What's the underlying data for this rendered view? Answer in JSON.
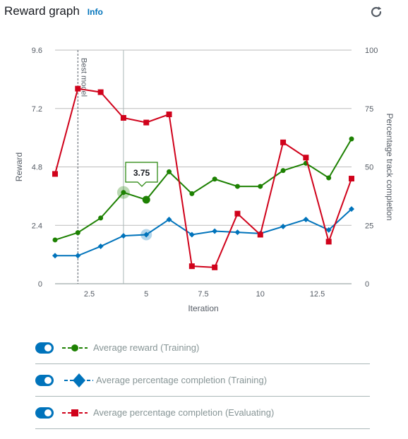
{
  "header": {
    "title": "Reward graph",
    "info_label": "Info",
    "refresh_icon": "refresh-icon"
  },
  "tooltip": {
    "value": "3.75"
  },
  "annotation": {
    "text": "Best model"
  },
  "colors": {
    "green": "#1d8102",
    "blue": "#0073bb",
    "red": "#d0021b",
    "grid": "#bbbbbb",
    "axis_text": "#545b64"
  },
  "chart_data": {
    "type": "line",
    "xlabel": "Iteration",
    "ylabel": "Reward",
    "y2label": "Percentage track completion",
    "xlim": [
      1,
      14
    ],
    "ylim": [
      0,
      9.6
    ],
    "y2lim": [
      0,
      100
    ],
    "xticks": [
      2.5,
      5,
      7.5,
      10,
      12.5
    ],
    "xtick_labels": [
      "2.5",
      "5",
      "7.5",
      "10",
      "12.5"
    ],
    "yticks": [
      0,
      2.4,
      4.8,
      7.2,
      9.6
    ],
    "ytick_labels": [
      "0",
      "2.4",
      "4.8",
      "7.2",
      "9.6"
    ],
    "y2ticks": [
      0,
      25,
      50,
      75,
      100
    ],
    "y2tick_labels": [
      "0",
      "25",
      "50",
      "75",
      "100"
    ],
    "best_model_x": 2,
    "hover_x": 4,
    "x": [
      1,
      2,
      3,
      4,
      5,
      6,
      7,
      8,
      9,
      10,
      11,
      12,
      13,
      14
    ],
    "series": [
      {
        "name": "Average reward (Training)",
        "axis": "left",
        "color": "#1d8102",
        "marker": "circle",
        "values": [
          1.8,
          2.1,
          2.7,
          3.75,
          3.45,
          4.6,
          3.7,
          4.3,
          4.0,
          4.0,
          4.65,
          4.95,
          4.35,
          5.95
        ]
      },
      {
        "name": "Average percentage completion (Training)",
        "axis": "right",
        "color": "#0073bb",
        "marker": "diamond",
        "values": [
          12,
          12,
          16,
          20.5,
          21,
          27.5,
          21,
          22.5,
          22,
          21.5,
          24.5,
          27.5,
          23,
          32
        ]
      },
      {
        "name": "Average percentage completion (Evaluating)",
        "axis": "right",
        "color": "#d0021b",
        "marker": "square",
        "values": [
          47,
          83.5,
          82,
          71,
          69,
          72.5,
          7.5,
          7,
          30,
          21,
          60.5,
          54,
          18,
          45
        ]
      }
    ]
  }
}
